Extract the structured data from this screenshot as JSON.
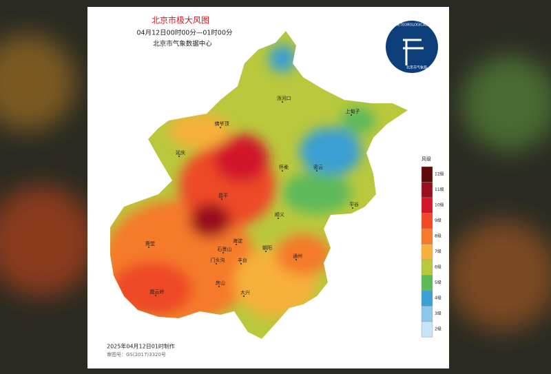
{
  "header": {
    "title": "北京市极大风图",
    "time_range": "04月12日00时00分—01时00分",
    "source": "北京市气象数据中心"
  },
  "logo": {
    "ring_text": "BEIJING METEOROLOGICAL SERVICE",
    "name": "北京市气象局"
  },
  "legend": {
    "title": "风级",
    "items": [
      {
        "label": "12级",
        "color": "#5e0b0b"
      },
      {
        "label": "11级",
        "color": "#99101c"
      },
      {
        "label": "10级",
        "color": "#d2162b"
      },
      {
        "label": "9级",
        "color": "#ee4a28"
      },
      {
        "label": "8级",
        "color": "#f57a2c"
      },
      {
        "label": "7级",
        "color": "#f6b13a"
      },
      {
        "label": "6级",
        "color": "#b9c83c"
      },
      {
        "label": "5级",
        "color": "#5db95a"
      },
      {
        "label": "4级",
        "color": "#3a9fd2"
      },
      {
        "label": "3级",
        "color": "#8cc7ec"
      },
      {
        "label": "2级",
        "color": "#c8e3f6"
      }
    ]
  },
  "places": [
    "汤河口",
    "佛爷顶",
    "上甸子",
    "延庆",
    "怀柔",
    "密云",
    "平谷",
    "昌平",
    "顺义",
    "海淀",
    "朝阳",
    "石景山",
    "门头沟",
    "丰台",
    "房山",
    "大兴",
    "通州",
    "斋堂",
    "霞云岭"
  ],
  "footer": {
    "made": "2025年04月12日01时制作",
    "approval": "审图号：GS(2017)3320号"
  }
}
